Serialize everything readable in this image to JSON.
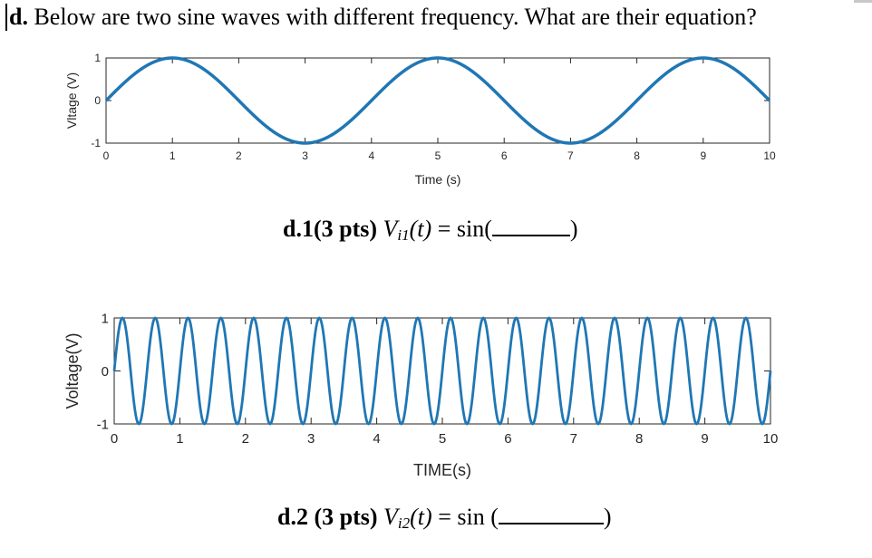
{
  "question": {
    "prefix": "d.",
    "text": " Below are two sine waves with different frequency. What are their equation?"
  },
  "equations": [
    {
      "pts_label": "d.1(3 pts)",
      "var": "V",
      "sub": "i1",
      "arg": "(t)",
      "rhs": " = sin(",
      "close": ")"
    },
    {
      "pts_label": "d.2 (3 pts)",
      "var": "V",
      "sub": "i2",
      "arg": "(t)",
      "rhs": " = sin (",
      "close": ")"
    }
  ],
  "chart_data": [
    {
      "type": "line",
      "title": "",
      "xlabel": "Time (s)",
      "ylabel": "Vltage (V)",
      "xlim": [
        0,
        10
      ],
      "ylim": [
        -1,
        1
      ],
      "xticks": [
        "0",
        "1",
        "2",
        "3",
        "4",
        "5",
        "6",
        "7",
        "8",
        "9",
        "10"
      ],
      "yticks": [
        "-1",
        "0",
        "1"
      ],
      "function": "sin",
      "frequency_hz": 0.25,
      "amplitude": 1,
      "color": "#1f77b4",
      "grid": false
    },
    {
      "type": "line",
      "title": "",
      "xlabel": "TIME(s)",
      "ylabel": "Voltage(V)",
      "xlim": [
        0,
        10
      ],
      "ylim": [
        -1,
        1
      ],
      "xticks": [
        "0",
        "1",
        "2",
        "3",
        "4",
        "5",
        "6",
        "7",
        "8",
        "9",
        "10"
      ],
      "yticks": [
        "-1",
        "0",
        "1"
      ],
      "function": "sin",
      "frequency_hz": 2,
      "amplitude": 1,
      "color": "#1f77b4",
      "grid": false
    }
  ]
}
